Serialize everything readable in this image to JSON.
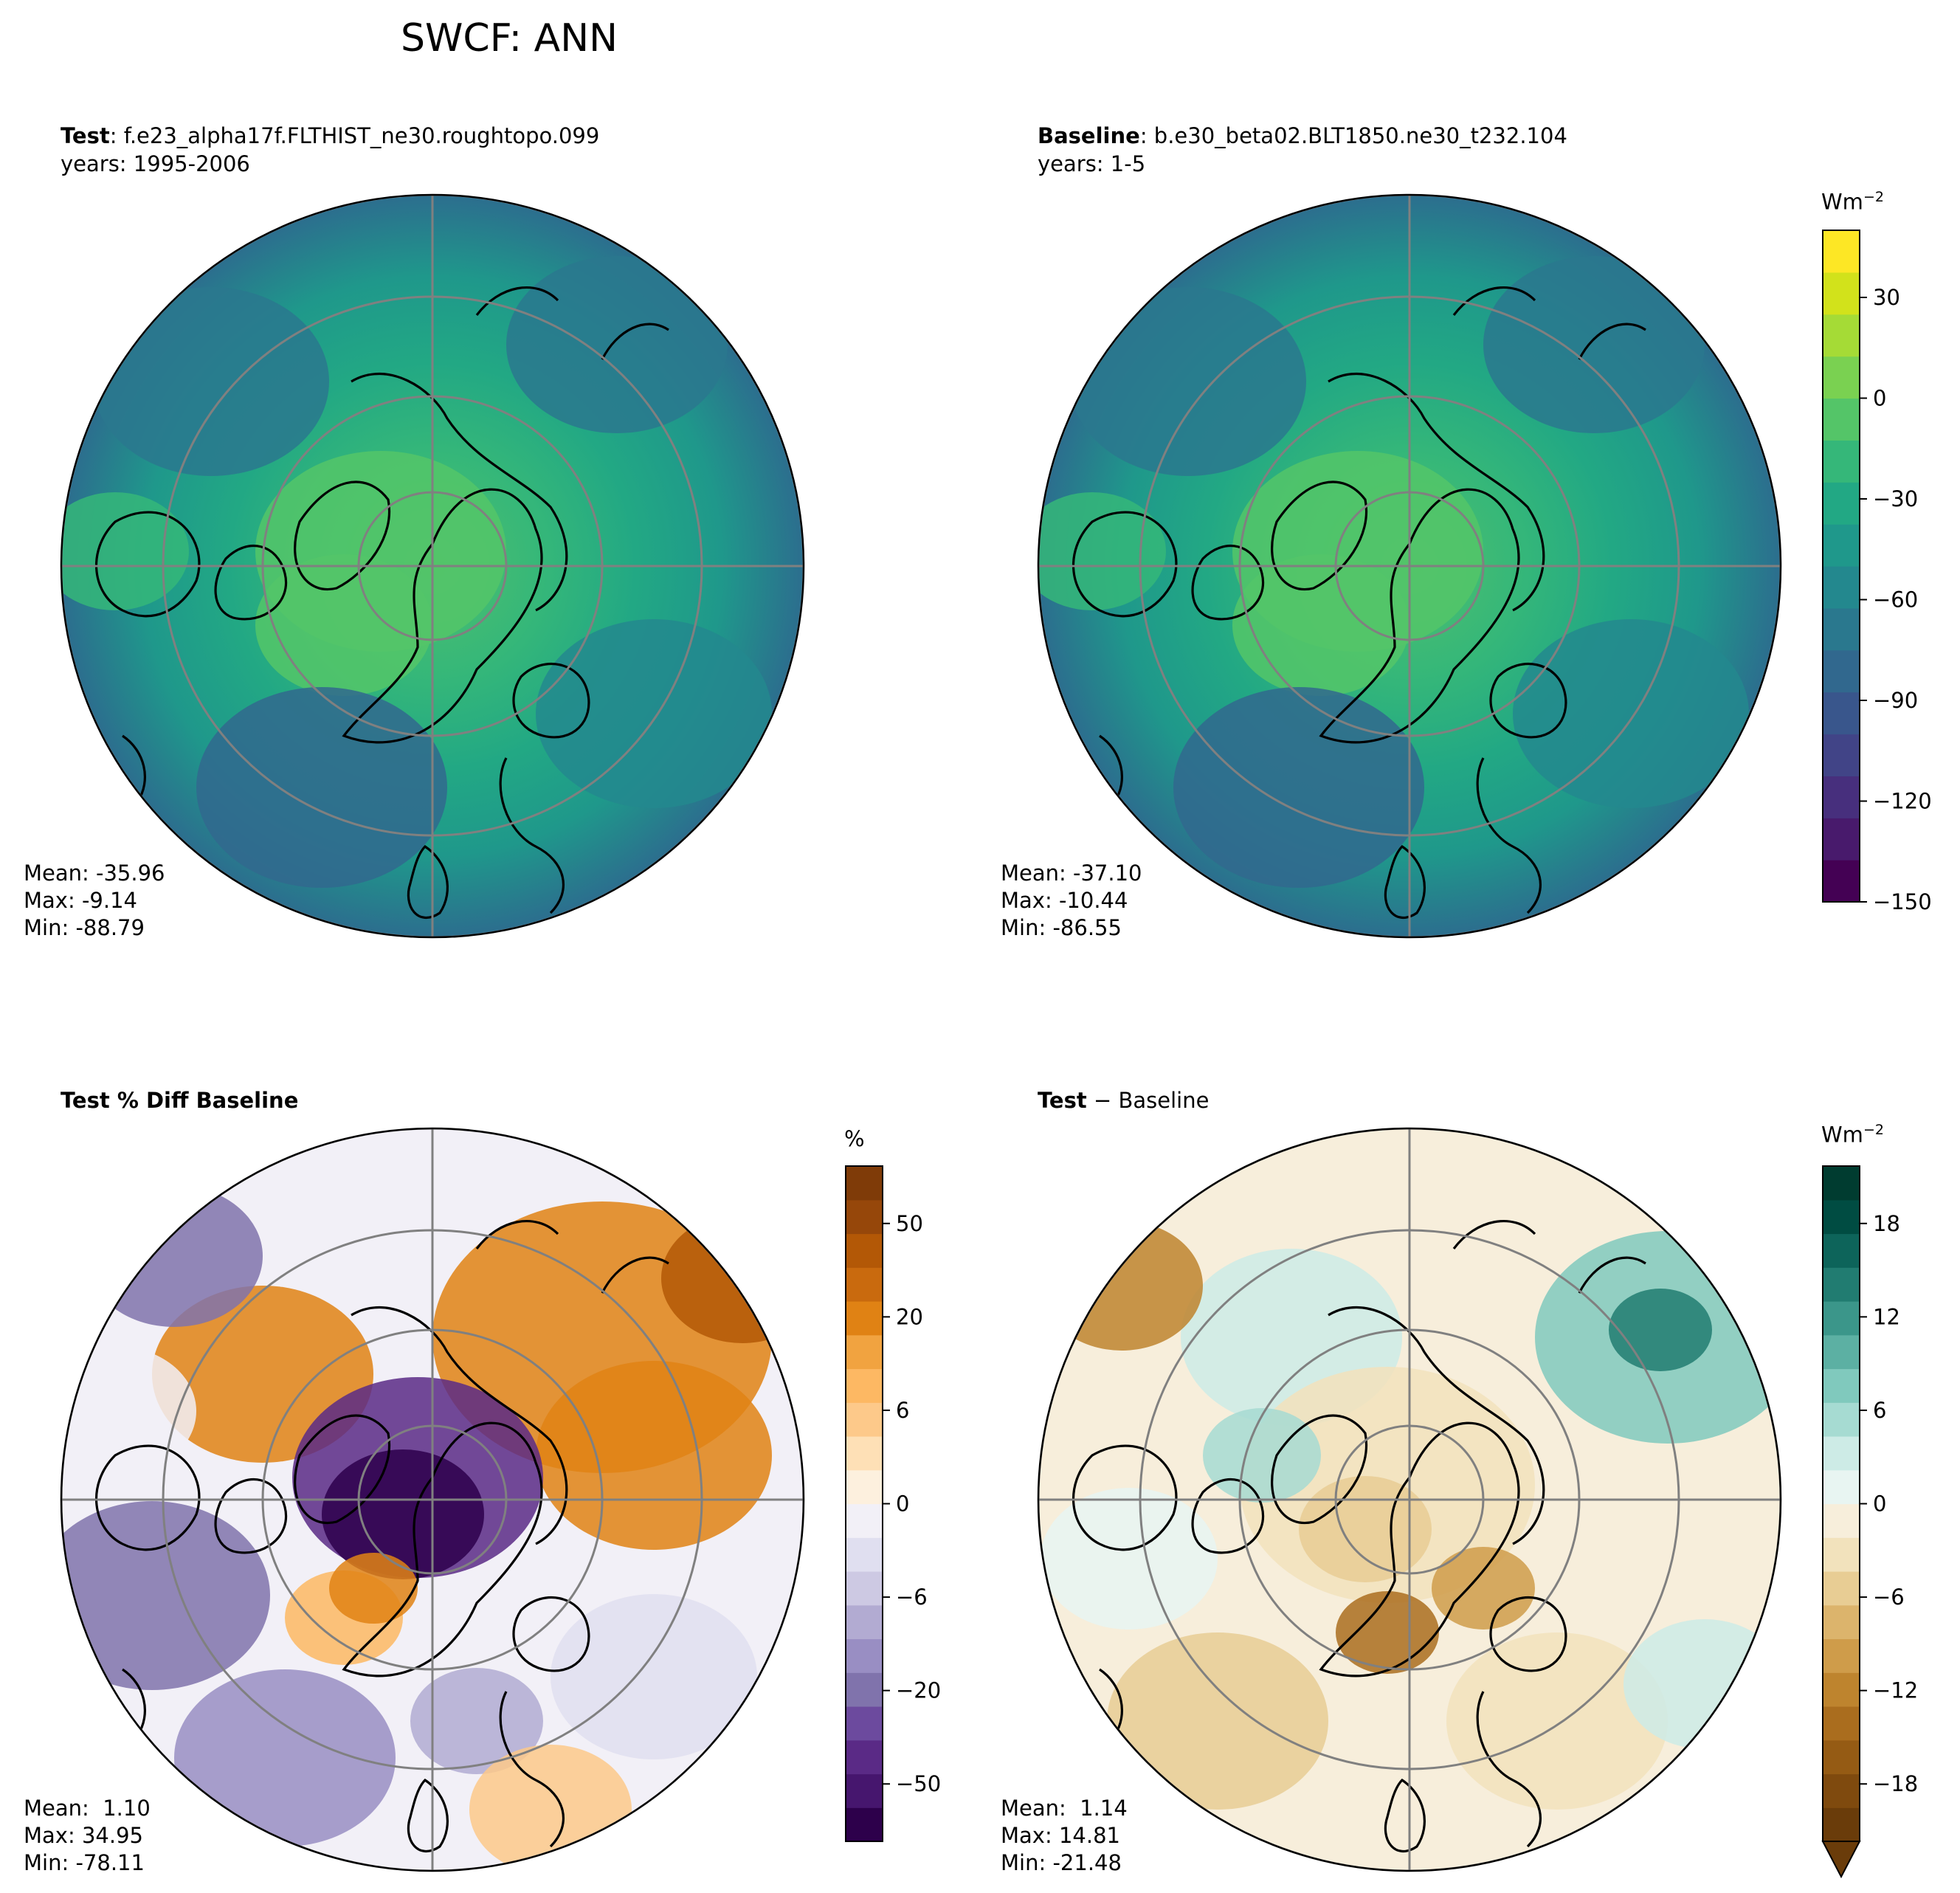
{
  "figure": {
    "title": "SWCF: ANN"
  },
  "panels": [
    {
      "id": "test",
      "title_bold": "Test",
      "title_rest": ": f.e23_alpha17f.FLTHIST_ne30.roughtopo.099",
      "subtitle": "years: 1995-2006",
      "stats": {
        "mean_label": "Mean:",
        "mean": "-35.96",
        "max_label": "Max:",
        "max": "-9.14",
        "min_label": "Min:",
        "min": "-88.79"
      },
      "field": "test"
    },
    {
      "id": "baseline",
      "title_bold": "Baseline",
      "title_rest": ": b.e30_beta02.BLT1850.ne30_t232.104",
      "subtitle": "years: 1-5",
      "stats": {
        "mean_label": "Mean:",
        "mean": "-37.10",
        "max_label": "Max:",
        "max": "-10.44",
        "min_label": "Min:",
        "min": "-86.55"
      },
      "field": "baseline"
    },
    {
      "id": "pctdiff",
      "title_bold": "Test % Diff Baseline",
      "title_rest": "",
      "subtitle": "",
      "stats": {
        "mean_label": "Mean:",
        "mean": " 1.10",
        "max_label": "Max:",
        "max": "34.95",
        "min_label": "Min:",
        "min": "-78.11"
      },
      "field": "pctdiff"
    },
    {
      "id": "diff",
      "title_bold": "Test",
      "title_rest": " − Baseline",
      "subtitle": "",
      "stats": {
        "mean_label": "Mean:",
        "mean": " 1.14",
        "max_label": "Max:",
        "max": "14.81",
        "min_label": "Min:",
        "min": "-21.48"
      },
      "field": "diff"
    }
  ],
  "colorbars": [
    {
      "id": "main",
      "unit_base": "Wm",
      "unit_sup": "−2",
      "ticks": [
        "30",
        "0",
        "−30",
        "−60",
        "−90",
        "−120",
        "−150"
      ],
      "colors_bottom_to_top": [
        "#440154",
        "#481a6c",
        "#472f7d",
        "#414487",
        "#39568c",
        "#31688e",
        "#2a788e",
        "#23888e",
        "#1f988b",
        "#22a884",
        "#35b779",
        "#54c568",
        "#7ad151",
        "#a5db36",
        "#d2e21b",
        "#fde725"
      ]
    },
    {
      "id": "pct",
      "unit_base": "%",
      "unit_sup": "",
      "ticks": [
        "50",
        "20",
        "6",
        "0",
        "−6",
        "−20",
        "−50"
      ],
      "colors_bottom_to_top": [
        "#2d004b",
        "#46166e",
        "#5a2a86",
        "#6c4a9e",
        "#8073ac",
        "#998ec3",
        "#b2abd2",
        "#cdc9e3",
        "#e0dff0",
        "#f2f0f7",
        "#fdf0de",
        "#fee0b6",
        "#fdc98a",
        "#fdb863",
        "#f1a340",
        "#e08214",
        "#c96a0e",
        "#b35806",
        "#96470a",
        "#7f3b08"
      ]
    },
    {
      "id": "diff",
      "unit_base": "Wm",
      "unit_sup": "−2",
      "ticks": [
        "18",
        "12",
        "6",
        "0",
        "−6",
        "−12",
        "−18"
      ],
      "colors_bottom_to_top": [
        "#6a3c0a",
        "#7f4a0e",
        "#955b14",
        "#aa6d1e",
        "#be842e",
        "#cf9c4a",
        "#dcb46c",
        "#e8cd94",
        "#f2e2bc",
        "#f7eedb",
        "#e8f5f2",
        "#cdebe6",
        "#a6dbd2",
        "#80c9bd",
        "#5cb0a3",
        "#3b968a",
        "#217c71",
        "#0d645a",
        "#004c42",
        "#003c30"
      ]
    }
  ]
}
